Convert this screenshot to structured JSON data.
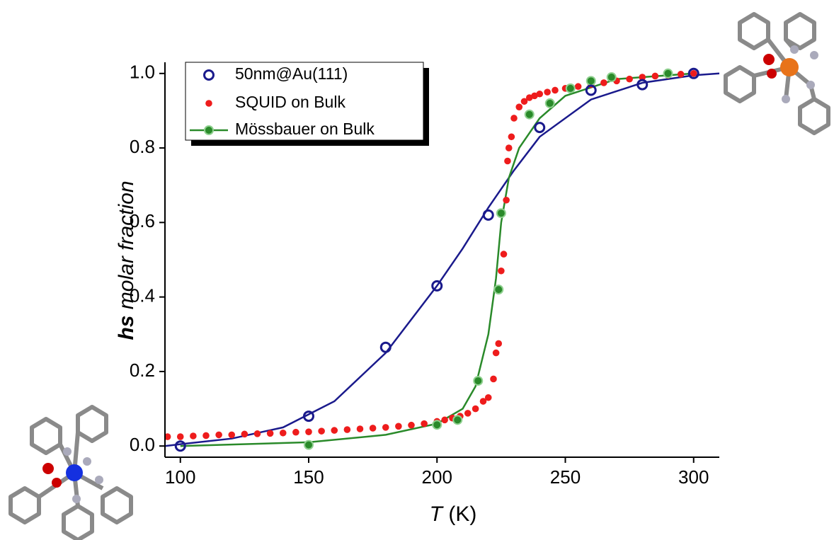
{
  "chart_data": {
    "type": "scatter",
    "x_label_symbol": "T",
    "x_label_unit": "(K)",
    "y_label_symbol": "hs",
    "y_label_text": "molar fraction",
    "xlim": [
      94,
      310
    ],
    "xticks": [
      100,
      150,
      200,
      250,
      300
    ],
    "ylim": [
      -0.03,
      1.03
    ],
    "yticks": [
      {
        "value": 0,
        "label": "0.0"
      },
      0.2,
      0.4,
      0.6,
      0.8,
      {
        "value": 1,
        "label": "1.0"
      }
    ],
    "legend": "upper left",
    "series": [
      {
        "name": "50nm@Au(111)",
        "color": "#1a1a8c",
        "marker": "open-circle",
        "x": [
          100,
          150,
          180,
          200,
          220,
          240,
          260,
          280,
          300
        ],
        "values": [
          0.0,
          0.08,
          0.265,
          0.43,
          0.62,
          0.855,
          0.955,
          0.97,
          1.0
        ]
      },
      {
        "name": "SQUID on Bulk",
        "color": "#ee1c1c",
        "marker": "dot",
        "x": [
          95,
          100,
          105,
          110,
          115,
          120,
          125,
          130,
          135,
          140,
          145,
          150,
          155,
          160,
          165,
          170,
          175,
          180,
          185,
          190,
          195,
          200,
          203,
          206,
          209,
          212,
          215,
          218,
          220,
          222,
          223,
          224,
          225,
          226,
          227,
          227.5,
          228,
          229,
          230,
          232,
          234,
          236,
          238,
          240,
          243,
          246,
          250,
          255,
          260,
          265,
          270,
          275,
          280,
          285,
          290,
          295,
          300
        ],
        "values": [
          0.025,
          0.025,
          0.027,
          0.028,
          0.03,
          0.03,
          0.032,
          0.033,
          0.034,
          0.035,
          0.037,
          0.038,
          0.04,
          0.042,
          0.044,
          0.046,
          0.048,
          0.05,
          0.053,
          0.056,
          0.06,
          0.066,
          0.07,
          0.075,
          0.08,
          0.088,
          0.1,
          0.12,
          0.13,
          0.18,
          0.25,
          0.275,
          0.47,
          0.515,
          0.66,
          0.765,
          0.8,
          0.83,
          0.88,
          0.91,
          0.925,
          0.935,
          0.94,
          0.945,
          0.95,
          0.955,
          0.96,
          0.965,
          0.97,
          0.975,
          0.98,
          0.985,
          0.99,
          0.993,
          0.995,
          0.998,
          1.0
        ]
      },
      {
        "name": "Mössbauer on Bulk",
        "color": "#2a8a2a",
        "marker": "filled-circle",
        "x": [
          150,
          200,
          208,
          216,
          224,
          225,
          236,
          244,
          252,
          260,
          268,
          290
        ],
        "values": [
          0.003,
          0.057,
          0.07,
          0.175,
          0.42,
          0.625,
          0.89,
          0.92,
          0.96,
          0.98,
          0.99,
          1.0
        ]
      }
    ],
    "fits": [
      {
        "color": "#1a1a8c",
        "x": [
          94,
          100,
          120,
          140,
          160,
          180,
          200,
          210,
          220,
          230,
          240,
          260,
          280,
          300,
          310
        ],
        "values": [
          0.0,
          0.005,
          0.02,
          0.05,
          0.12,
          0.25,
          0.43,
          0.53,
          0.64,
          0.74,
          0.83,
          0.93,
          0.975,
          0.995,
          1.0
        ]
      },
      {
        "color": "#2a8a2a",
        "x": [
          100,
          150,
          180,
          200,
          210,
          215,
          220,
          223,
          225,
          228,
          232,
          240,
          250,
          270,
          300
        ],
        "values": [
          0.0,
          0.01,
          0.03,
          0.06,
          0.1,
          0.16,
          0.3,
          0.45,
          0.6,
          0.72,
          0.8,
          0.88,
          0.94,
          0.985,
          1.0
        ]
      }
    ]
  }
}
